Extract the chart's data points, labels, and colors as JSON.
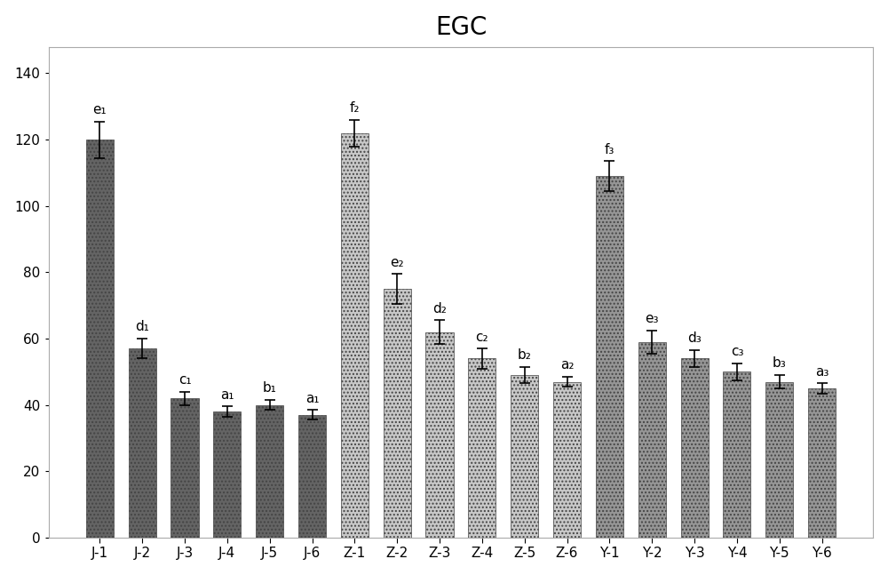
{
  "title": "EGC",
  "title_fontsize": 20,
  "categories": [
    "J-1",
    "J-2",
    "J-3",
    "J-4",
    "J-5",
    "J-6",
    "Z-1",
    "Z-2",
    "Z-3",
    "Z-4",
    "Z-5",
    "Z-6",
    "Y-1",
    "Y-2",
    "Y-3",
    "Y-4",
    "Y-5",
    "Y-6"
  ],
  "values": [
    120,
    57,
    42,
    38,
    40,
    37,
    122,
    75,
    62,
    54,
    49,
    47,
    109,
    59,
    54,
    50,
    47,
    45
  ],
  "errors": [
    5.5,
    3.0,
    2.0,
    1.5,
    1.5,
    1.5,
    4.0,
    4.5,
    3.5,
    3.0,
    2.5,
    1.5,
    4.5,
    3.5,
    2.5,
    2.5,
    2.0,
    1.5
  ],
  "bar_colors": [
    "#646464",
    "#646464",
    "#646464",
    "#646464",
    "#646464",
    "#646464",
    "#c8c8c8",
    "#c8c8c8",
    "#c8c8c8",
    "#c8c8c8",
    "#c8c8c8",
    "#c8c8c8",
    "#969696",
    "#969696",
    "#969696",
    "#969696",
    "#969696",
    "#969696"
  ],
  "hatch_colors": [
    "#888888",
    "#888888",
    "#888888",
    "#888888",
    "#888888",
    "#888888",
    "#e0e0e0",
    "#e0e0e0",
    "#e0e0e0",
    "#e0e0e0",
    "#e0e0e0",
    "#e0e0e0",
    "#b4b4b4",
    "#b4b4b4",
    "#b4b4b4",
    "#b4b4b4",
    "#b4b4b4",
    "#b4b4b4"
  ],
  "labels": [
    "e₁",
    "d₁",
    "c₁",
    "a₁",
    "b₁",
    "a₁",
    "f₂",
    "e₂",
    "d₂",
    "c₂",
    "b₂",
    "a₂",
    "f₃",
    "e₃",
    "d₃",
    "c₃",
    "b₃",
    "a₃"
  ],
  "ylim": [
    0,
    148
  ],
  "yticks": [
    0,
    20,
    40,
    60,
    80,
    100,
    120,
    140
  ],
  "label_fontsize": 11,
  "tick_fontsize": 11,
  "bar_width": 0.65,
  "background_color": "#ffffff"
}
